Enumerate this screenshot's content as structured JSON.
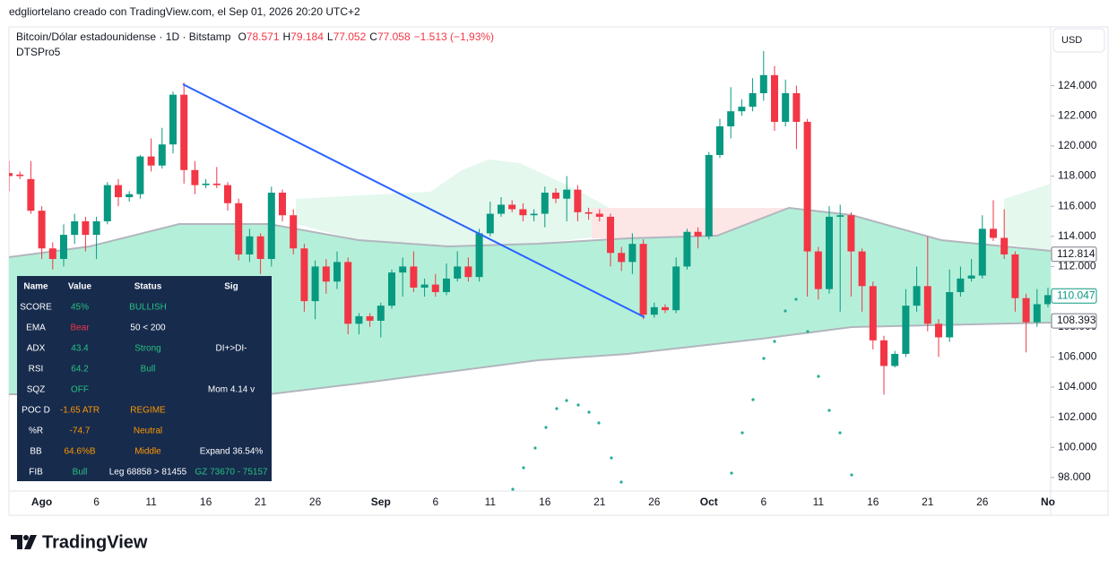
{
  "header": {
    "attribution": "edgliortelano creado con TradingView.com, el Sep 01, 2026 20:20 UTC+2",
    "symbol": "Bitcoin/Dólar estadounidense · 1D · Bitstamp",
    "ohlc": [
      {
        "label": "O",
        "value": "78.571"
      },
      {
        "label": "H",
        "value": "79.184"
      },
      {
        "label": "L",
        "value": "77.052"
      },
      {
        "label": "C",
        "value": "77.058"
      }
    ],
    "change": "−1.513 (−1,93%)",
    "indicator": "DTSPro5",
    "currency": "USD"
  },
  "chart_data": {
    "type": "candlestick",
    "up_color": "#089981",
    "down_color": "#f23645",
    "categories": [
      null,
      null,
      null,
      "Ago",
      null,
      null,
      null,
      null,
      "6",
      null,
      null,
      null,
      null,
      "11",
      null,
      null,
      null,
      null,
      "16",
      null,
      null,
      null,
      null,
      "21",
      null,
      null,
      null,
      null,
      "26",
      null,
      null,
      null,
      null,
      null,
      "Sep",
      null,
      null,
      null,
      null,
      "6",
      null,
      null,
      null,
      null,
      "11",
      null,
      null,
      null,
      null,
      "16",
      null,
      null,
      null,
      null,
      "21",
      null,
      null,
      null,
      null,
      "26",
      null,
      null,
      null,
      null,
      "Oct",
      null,
      null,
      null,
      null,
      "6",
      null,
      null,
      null,
      null,
      "11",
      null,
      null,
      null,
      null,
      "16",
      null,
      null,
      null,
      null,
      "21",
      null,
      null,
      null,
      null,
      "26",
      null,
      null,
      null,
      null,
      null,
      "No"
    ],
    "open": [
      118.2,
      118.1,
      117.8,
      115.7,
      113.2,
      112.5,
      114.1,
      115,
      114.1,
      115,
      117.4,
      116.6,
      116.8,
      119.3,
      118.7,
      120.1,
      123.4,
      118.4,
      117.4,
      117.5,
      117.4,
      116.2,
      112.8,
      114,
      112.5,
      116.9,
      115.4,
      113.2,
      109.7,
      112,
      111,
      112.3,
      108.2,
      108.7,
      108.4,
      109.4,
      111.6,
      112,
      110.6,
      110.8,
      110.3,
      111.2,
      112,
      111.3,
      114.2,
      115.5,
      116.1,
      115.8,
      115.4,
      115.5,
      116.9,
      116.5,
      117.1,
      115.6,
      115.5,
      115.3,
      112.9,
      112.3,
      113.5,
      108.8,
      109.3,
      109.1,
      112,
      114.3,
      114,
      119.4,
      121.3,
      122.3,
      122.6,
      123.5,
      124.7,
      121.6,
      123.5,
      121.6,
      113,
      110.5,
      115.3,
      115.4,
      113,
      110.7,
      107.1,
      105.4,
      106.2,
      109.4,
      110.7,
      108.2,
      107.3,
      110.3,
      111.2,
      111.4,
      114.5,
      113.9,
      112.8,
      109.9,
      108.3,
      109.5
    ],
    "high": [
      119,
      118.3,
      119,
      116,
      113.6,
      114.8,
      115.5,
      115.3,
      115.3,
      117.6,
      117.8,
      117,
      119.4,
      120.5,
      121.2,
      123.6,
      124.2,
      119,
      117.8,
      118.6,
      117.6,
      116.5,
      114.5,
      114.2,
      117.3,
      117.1,
      115.8,
      113.5,
      112.4,
      112.5,
      113,
      112.6,
      108.9,
      108.9,
      109.6,
      111.8,
      112.6,
      113,
      111.2,
      111.5,
      112.2,
      113,
      112.6,
      114.5,
      116.3,
      116.6,
      116.4,
      116.2,
      115.8,
      117.3,
      117.2,
      118,
      117.4,
      115.9,
      115.8,
      115.5,
      113.3,
      114.2,
      113.8,
      109.6,
      109.5,
      112.6,
      114.5,
      114.6,
      119.6,
      121.8,
      123.9,
      123.1,
      124.5,
      126.3,
      125.3,
      124.4,
      124,
      121.8,
      113.3,
      116,
      116.1,
      115.6,
      113.2,
      111,
      107.4,
      106.4,
      110.5,
      112,
      114,
      108.5,
      111.8,
      112,
      112.5,
      115.4,
      116.4,
      115.8,
      113,
      110.2,
      110.5,
      110.6
    ],
    "low": [
      117,
      117.8,
      115.5,
      112.5,
      111.8,
      112,
      113.5,
      113,
      112.5,
      114.8,
      116,
      116.3,
      116.5,
      118.3,
      118.5,
      119.5,
      117.5,
      116.8,
      117.2,
      117.2,
      115.7,
      112.4,
      112.3,
      111.5,
      112,
      115,
      112.8,
      109,
      108.5,
      110.2,
      110.5,
      107.5,
      107.5,
      108,
      107.3,
      109.2,
      110,
      110.3,
      110,
      110,
      110.1,
      111,
      111,
      111,
      114,
      115.3,
      115.6,
      115,
      115,
      114.6,
      116.2,
      115,
      115,
      115.1,
      115,
      112,
      111.7,
      111.5,
      108.5,
      108.6,
      108.9,
      108.9,
      111.8,
      113.2,
      113.8,
      119.2,
      120.5,
      122,
      122.3,
      123,
      121,
      121.3,
      119.8,
      110,
      109.8,
      110.2,
      109,
      110,
      109,
      106.5,
      103.5,
      105.3,
      106,
      109,
      107.7,
      106,
      107,
      110,
      111,
      111.2,
      113.7,
      112.5,
      109,
      106.3,
      108,
      109.3
    ],
    "close": [
      118,
      118,
      115.7,
      113.2,
      112.5,
      114.1,
      115,
      114.1,
      115,
      117.4,
      116.6,
      116.8,
      119.3,
      118.7,
      120.1,
      123.4,
      118.4,
      117.4,
      117.5,
      117.4,
      116.2,
      112.8,
      114,
      112.5,
      116.9,
      115.4,
      113.2,
      109.7,
      112,
      111,
      112.3,
      108.2,
      108.7,
      108.4,
      109.4,
      111.6,
      112,
      110.6,
      110.8,
      110.3,
      111.2,
      112,
      111.3,
      114.2,
      115.5,
      116.1,
      115.8,
      115.4,
      115.5,
      116.9,
      116.5,
      117.1,
      115.6,
      115.5,
      115.3,
      112.9,
      112.3,
      113.5,
      108.8,
      109.3,
      109.1,
      112,
      114.3,
      114,
      119.4,
      121.3,
      122.3,
      122.6,
      123.5,
      124.7,
      121.6,
      123.5,
      121.6,
      113,
      110.5,
      115.3,
      115.4,
      113,
      110.7,
      107.1,
      105.4,
      106.2,
      109.4,
      110.7,
      108.2,
      107.3,
      110.3,
      111.2,
      111.4,
      114.5,
      113.9,
      112.8,
      109.9,
      108.3,
      109.5,
      110.1
    ],
    "ylim": [
      97.1,
      127.9
    ],
    "yticks": [
      {
        "value": 98,
        "label": "98.000"
      },
      {
        "value": 100,
        "label": "100.000"
      },
      {
        "value": 102,
        "label": "102.000"
      },
      {
        "value": 104,
        "label": "104.000"
      },
      {
        "value": 106,
        "label": "106.000"
      },
      {
        "value": 108,
        "label": "108.000"
      },
      {
        "value": 110,
        "label": "110.000"
      },
      {
        "value": 112,
        "label": "112.000"
      },
      {
        "value": 114,
        "label": "114.000"
      },
      {
        "value": 116,
        "label": "116.000"
      },
      {
        "value": 118,
        "label": "118.000"
      },
      {
        "value": 120,
        "label": "120.000"
      },
      {
        "value": 122,
        "label": "122.000"
      },
      {
        "value": 124,
        "label": "124.000"
      }
    ],
    "price_labels": [
      {
        "value": 112.814,
        "label": "112.814",
        "color": "#787b86"
      },
      {
        "value": 110.047,
        "label": "110.047",
        "color": "#089981"
      },
      {
        "value": 108.393,
        "label": "108.393",
        "color": "#787b86"
      }
    ]
  },
  "table": {
    "columns": [
      "Name",
      "Value",
      "Status",
      "Sig"
    ],
    "rows": [
      [
        {
          "text": "SCORE",
          "color": "#ffffff"
        },
        {
          "text": "45%",
          "color": "#26c281"
        },
        {
          "text": "BULLISH",
          "color": "#26c281"
        }
      ],
      [
        {
          "text": "EMA",
          "color": "#ffffff"
        },
        {
          "text": "Bear",
          "color": "#f23645"
        },
        {
          "text": "50 < 200",
          "color": "#ffffff"
        }
      ],
      [
        {
          "text": "ADX",
          "color": "#ffffff"
        },
        {
          "text": "43.4",
          "color": "#26c281"
        },
        {
          "text": "Strong",
          "color": "#26c281"
        },
        {
          "text": "DI+>DI-",
          "color": "#ffffff"
        }
      ],
      [
        {
          "text": "RSI",
          "color": "#ffffff"
        },
        {
          "text": "64.2",
          "color": "#26c281"
        },
        {
          "text": "Bull",
          "color": "#26c281"
        }
      ],
      [
        {
          "text": "SQZ",
          "color": "#ffffff"
        },
        {
          "text": "OFF",
          "color": "#26c281"
        },
        null,
        {
          "text": "Mom 4.14 v",
          "color": "#ffffff"
        }
      ],
      [
        {
          "text": "POC D",
          "color": "#ffffff"
        },
        {
          "text": "-1.65 ATR",
          "color": "#ff9800"
        },
        {
          "text": "REGIME",
          "color": "#ff9800"
        }
      ],
      [
        {
          "text": "%R",
          "color": "#ffffff"
        },
        {
          "text": "-74.7",
          "color": "#ff9800"
        },
        {
          "text": "Neutral",
          "color": "#ff9800"
        }
      ],
      [
        {
          "text": "BB",
          "color": "#ffffff"
        },
        {
          "text": "64.6%B",
          "color": "#ff9800"
        },
        {
          "text": "Middle",
          "color": "#ff9800"
        },
        {
          "text": "Expand 36.54%",
          "color": "#ffffff"
        }
      ],
      [
        {
          "text": "FIB",
          "color": "#ffffff"
        },
        {
          "text": "Bull",
          "color": "#26c281"
        },
        {
          "text": "Leg 68858 > 81455",
          "color": "#ffffff"
        },
        {
          "text": "GZ 73670 - 75157",
          "color": "#26c281"
        }
      ]
    ]
  },
  "footer": {
    "brand": "TradingView"
  }
}
